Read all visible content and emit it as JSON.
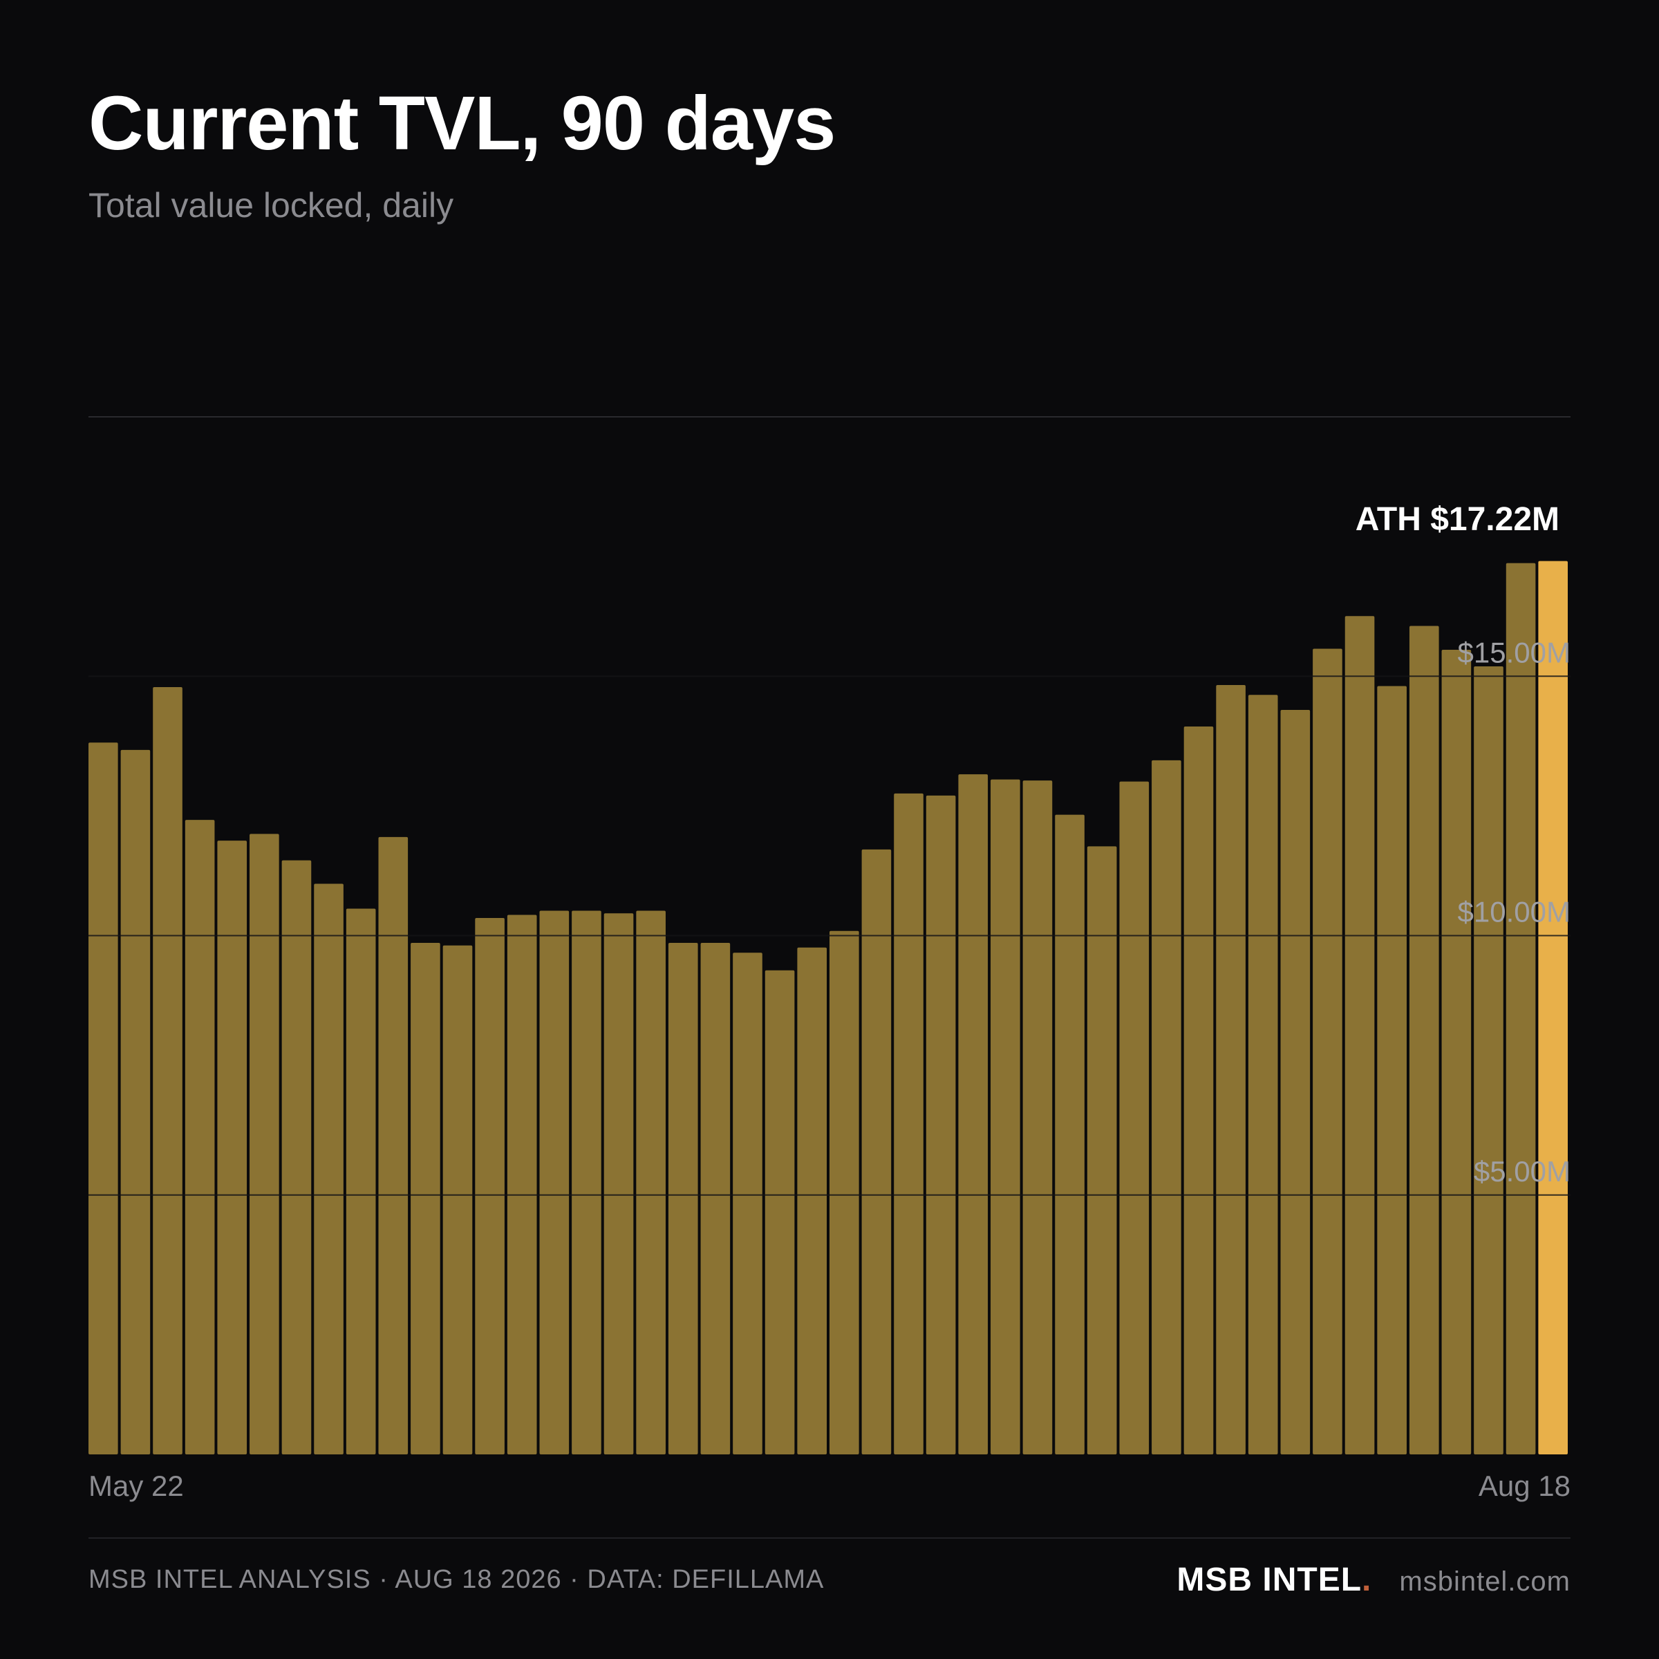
{
  "header": {
    "title": "Current TVL, 90 days",
    "subtitle": "Total value locked, daily"
  },
  "chart_data": {
    "type": "bar",
    "title": "Current TVL, 90 days",
    "subtitle": "Total value locked, daily",
    "x_start_label": "May 22",
    "x_end_label": "Aug 18",
    "y_tick_values": [
      5,
      10,
      15
    ],
    "y_tick_labels": [
      "$5.00M",
      "$10.00M",
      "$15.00M"
    ],
    "ylim": [
      0,
      20
    ],
    "unit": "$M",
    "values": [
      13.72,
      13.58,
      14.79,
      12.23,
      11.83,
      11.96,
      11.45,
      11.0,
      10.52,
      11.9,
      9.86,
      9.81,
      10.34,
      10.4,
      10.48,
      10.48,
      10.43,
      10.48,
      9.86,
      9.86,
      9.67,
      9.33,
      9.77,
      10.09,
      11.66,
      12.74,
      12.7,
      13.11,
      13.01,
      12.99,
      12.33,
      11.72,
      12.97,
      13.38,
      14.03,
      14.83,
      14.64,
      14.35,
      15.53,
      16.16,
      14.81,
      15.97,
      15.51,
      15.19,
      17.18,
      17.22
    ],
    "highlight_index": 45,
    "annotation": "ATH $17.22M",
    "bar_color": "#8b7333",
    "highlight_color": "#e8b04a",
    "grid": true
  },
  "footer": {
    "source": "MSB INTEL ANALYSIS · AUG 18 2026 · DATA: DEFILLAMA",
    "brand": "MSB INTEL",
    "brand_dot": ".",
    "url": "msbintel.com"
  }
}
